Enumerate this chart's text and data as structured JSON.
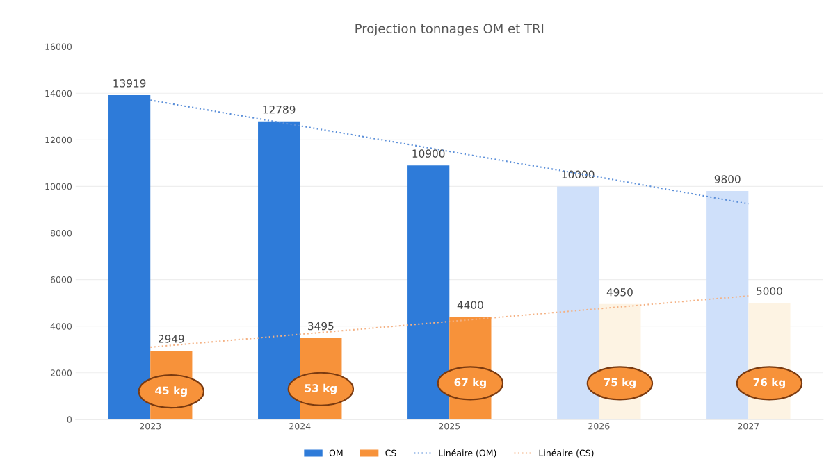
{
  "chart_data": {
    "type": "bar",
    "title": "Projection tonnages OM et TRI",
    "categories": [
      "2023",
      "2024",
      "2025",
      "2026",
      "2027"
    ],
    "series": [
      {
        "name": "OM",
        "color": "#2e7bd9",
        "colors": [
          "#2e7bd9",
          "#2e7bd9",
          "#2e7bd9",
          "#cfe0fa",
          "#cfe0fa"
        ],
        "values": [
          13919,
          12789,
          10900,
          10000,
          9800
        ],
        "value_labels": [
          "13919",
          "12789",
          "10900",
          "10000",
          "9800"
        ]
      },
      {
        "name": "CS",
        "color": "#f7923a",
        "colors": [
          "#f7923a",
          "#f7923a",
          "#f7923a",
          "#fdf3e3",
          "#fdf3e3"
        ],
        "values": [
          2949,
          3495,
          4400,
          4950,
          5000
        ],
        "value_labels": [
          "2949",
          "3495",
          "4400",
          "4950",
          "5000"
        ]
      },
      {
        "name": "Linéaire (OM)",
        "type": "line",
        "color": "#5b8fd9",
        "line_style": "dotted",
        "values": [
          13700,
          12600,
          11500,
          10400,
          9250
        ]
      },
      {
        "name": "Linéaire (CS)",
        "type": "line",
        "color": "#f4b183",
        "line_style": "dotted",
        "values": [
          3100,
          3650,
          4200,
          4750,
          5300
        ]
      }
    ],
    "ylim": [
      0,
      16000
    ],
    "yticks": [
      0,
      2000,
      4000,
      6000,
      8000,
      10000,
      12000,
      14000,
      16000
    ],
    "grid": "y",
    "legend": "bottom",
    "annotations": [
      {
        "text": "45 kg",
        "x": "2023",
        "y": 1200
      },
      {
        "text": "53 kg",
        "x": "2024",
        "y": 1300
      },
      {
        "text": "67 kg",
        "x": "2025",
        "y": 1550
      },
      {
        "text": "75 kg",
        "x": "2026",
        "y": 1550
      },
      {
        "text": "76 kg",
        "x": "2027",
        "y": 1550
      }
    ]
  }
}
